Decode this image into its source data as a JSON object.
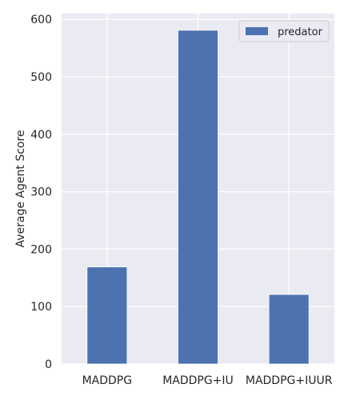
{
  "chart_data": {
    "type": "bar",
    "categories": [
      "MADDPG",
      "MADDPG+IU",
      "MADDPG+IUUR"
    ],
    "series": [
      {
        "name": "predator",
        "values": [
          169,
          581,
          121
        ],
        "color": "#4c72b0"
      }
    ],
    "ylabel": "Average Agent Score",
    "xlabel": "",
    "ylim": [
      0,
      610
    ],
    "yticks": [
      0,
      100,
      200,
      300,
      400,
      500,
      600
    ],
    "grid": true,
    "legend_position": "top-right",
    "background": "#eaeaf2",
    "grid_color": "#ffffff"
  }
}
